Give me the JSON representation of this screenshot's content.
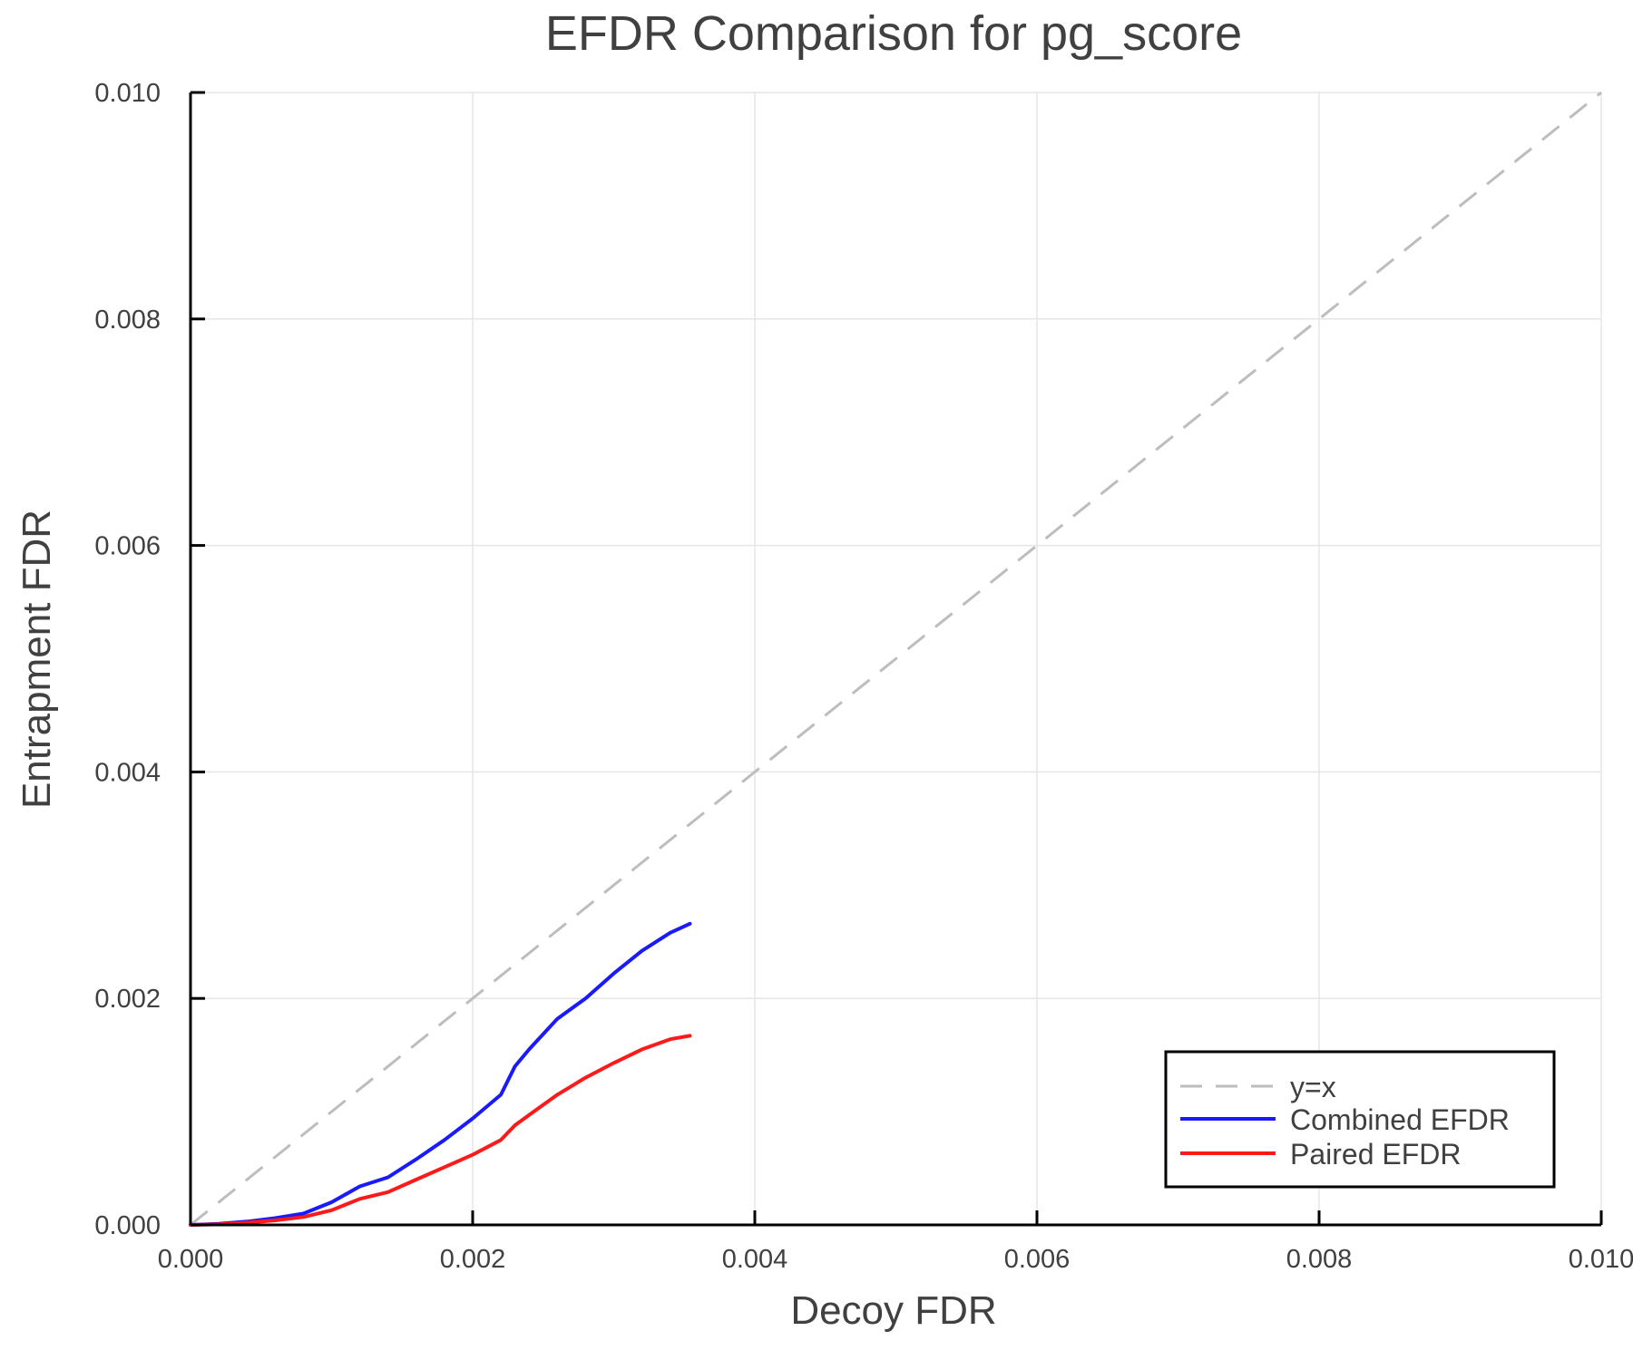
{
  "chart_data": {
    "type": "line",
    "title": "EFDR Comparison for pg_score",
    "xlabel": "Decoy FDR",
    "ylabel": "Entrapment FDR",
    "xlim": [
      0.0,
      0.01
    ],
    "ylim": [
      0.0,
      0.01
    ],
    "xticks": [
      "0.000",
      "0.002",
      "0.004",
      "0.006",
      "0.008",
      "0.010"
    ],
    "yticks": [
      "0.000",
      "0.002",
      "0.004",
      "0.006",
      "0.008",
      "0.010"
    ],
    "grid": true,
    "legend_position": "bottom-right",
    "series": [
      {
        "name": "y=x",
        "color": "#bdbdbd",
        "style": "dashed",
        "x": [
          0.0,
          0.01
        ],
        "y": [
          0.0,
          0.01
        ]
      },
      {
        "name": "Combined EFDR",
        "color": "#1a1aff",
        "style": "solid",
        "x": [
          0.0,
          0.0002,
          0.0004,
          0.0006,
          0.0008,
          0.001,
          0.0012,
          0.0014,
          0.0016,
          0.0018,
          0.002,
          0.0022,
          0.0023,
          0.0024,
          0.0026,
          0.0028,
          0.003,
          0.0032,
          0.0034,
          0.00354
        ],
        "y": [
          0.0,
          1e-05,
          3e-05,
          6e-05,
          0.0001,
          0.0002,
          0.00034,
          0.00042,
          0.00058,
          0.00075,
          0.00094,
          0.00115,
          0.0014,
          0.00155,
          0.00182,
          0.002,
          0.00222,
          0.00242,
          0.00258,
          0.00266
        ]
      },
      {
        "name": "Paired EFDR",
        "color": "#ff1a1a",
        "style": "solid",
        "x": [
          0.0,
          0.0002,
          0.0004,
          0.0006,
          0.0008,
          0.001,
          0.0012,
          0.0014,
          0.0016,
          0.0018,
          0.002,
          0.0022,
          0.0023,
          0.0024,
          0.0026,
          0.0028,
          0.003,
          0.0032,
          0.0034,
          0.00354
        ],
        "y": [
          0.0,
          5e-06,
          2e-05,
          4e-05,
          7e-05,
          0.00013,
          0.00023,
          0.00029,
          0.0004,
          0.00051,
          0.00062,
          0.00075,
          0.00088,
          0.00097,
          0.00115,
          0.0013,
          0.00143,
          0.00155,
          0.00164,
          0.00167
        ]
      }
    ]
  },
  "legend": {
    "items": [
      {
        "label": "y=x",
        "color": "#bdbdbd",
        "style": "dashed"
      },
      {
        "label": "Combined EFDR",
        "color": "#1a1aff",
        "style": "solid"
      },
      {
        "label": "Paired EFDR",
        "color": "#ff1a1a",
        "style": "solid"
      }
    ]
  }
}
